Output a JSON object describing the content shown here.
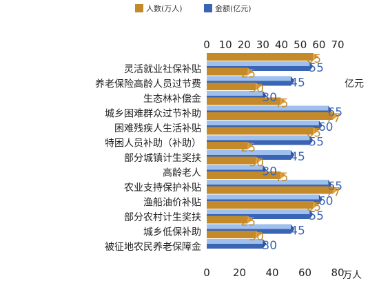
{
  "chart_data": {
    "type": "bar",
    "orientation": "horizontal",
    "categories": [
      "灵活就业社保补贴",
      "养老保险高龄人员过节费",
      "生态林补偿金",
      "城乡困难群众过节补助",
      "困难残疾人生活补贴",
      "特困人员补助（补助）",
      "部分城镇计生奖扶",
      "高龄老人",
      "农业支持保护补贴",
      "渔船油价补贴",
      "部分农村计生奖扶",
      "城乡低保补助",
      "被征地农民养老保障金"
    ],
    "series": [
      {
        "name": "人数(万人)",
        "axis": "bottom",
        "color": "#c48a2a",
        "values": [
          65,
          25,
          30,
          45,
          77,
          65,
          25,
          30,
          45,
          77,
          65,
          25,
          30
        ]
      },
      {
        "name": "金额(亿元)",
        "axis": "top",
        "color": "#3a64b4",
        "values": [
          55,
          45,
          30,
          65,
          60,
          55,
          45,
          30,
          65,
          60,
          55,
          45,
          30
        ]
      }
    ],
    "top_axis": {
      "label": "亿元",
      "ticks": [
        "0",
        "10",
        "20",
        "30",
        "40",
        "50",
        "60",
        "70"
      ],
      "range": [
        0,
        70
      ]
    },
    "bottom_axis": {
      "label": "万人",
      "ticks": [
        "0",
        "20",
        "40",
        "60",
        "80"
      ],
      "range": [
        0,
        80
      ]
    },
    "legend_position": "top",
    "grid": false
  }
}
